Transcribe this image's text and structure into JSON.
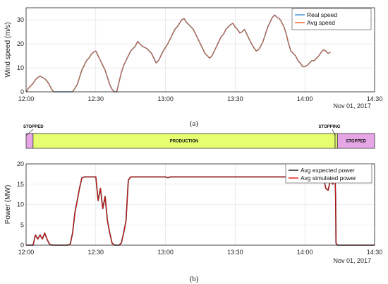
{
  "chart_data": [
    {
      "type": "line",
      "panel_label": "(a)",
      "ylabel": "Wind speed (m/s)",
      "xticks": [
        "12:00",
        "12:30",
        "13:00",
        "13:30",
        "14:00",
        "14:30"
      ],
      "xticks_min": [
        0,
        30,
        60,
        90,
        120,
        150
      ],
      "date_label": "Nov 01, 2017",
      "yticks": [
        "0",
        "10",
        "20",
        "30"
      ],
      "ylim": [
        0,
        35
      ],
      "xlim_min": [
        0,
        150
      ],
      "grid": true,
      "legend_position": "top-right",
      "series": [
        {
          "name": "Real speed",
          "color": "#3a8fd6",
          "x_min": [
            0,
            1,
            2,
            3,
            4,
            5,
            6,
            7,
            8,
            9,
            10,
            11,
            12,
            13,
            14,
            16,
            18,
            20,
            22,
            23,
            24,
            25,
            26,
            27,
            28,
            29,
            30,
            31,
            32,
            33,
            34,
            35,
            36,
            37,
            38,
            39,
            40,
            41,
            42,
            43,
            44,
            45,
            46,
            47,
            48,
            49,
            50,
            51,
            52,
            53,
            54,
            55,
            56,
            57,
            58,
            59,
            60,
            61,
            62,
            63,
            64,
            65,
            66,
            67,
            68,
            69,
            70,
            71,
            72,
            73,
            74,
            75,
            76,
            77,
            78,
            79,
            80,
            81,
            82,
            83,
            84,
            85,
            86,
            87,
            88,
            89,
            90,
            91,
            92,
            93,
            94,
            95,
            96,
            97,
            98,
            99,
            100,
            101,
            102,
            103,
            104,
            105,
            106,
            107,
            108,
            109,
            110,
            111,
            112,
            113,
            114,
            115,
            116,
            117,
            118,
            119,
            120,
            121,
            122,
            123,
            124,
            125,
            126,
            127,
            128,
            129,
            130,
            131,
            132,
            133,
            134,
            135,
            136,
            137,
            138,
            139
          ],
          "y": [
            0,
            1.5,
            2.5,
            3.5,
            5,
            6,
            6.5,
            6,
            5.5,
            4.5,
            3,
            1,
            0,
            0,
            0,
            0,
            0,
            0,
            3,
            6,
            9,
            11,
            13,
            14,
            15.5,
            16.5,
            17,
            15,
            13,
            11,
            9,
            6,
            3,
            1,
            0,
            0,
            4,
            8,
            11,
            13,
            15,
            17,
            18,
            19,
            21,
            20,
            19,
            18.5,
            18,
            17,
            16,
            14,
            12,
            13,
            15,
            17,
            18.5,
            20,
            22,
            24,
            26,
            27,
            28.5,
            30,
            30.5,
            29,
            28,
            27,
            26,
            24,
            22,
            20,
            18,
            16,
            15,
            14,
            15,
            17,
            19,
            21,
            23,
            24,
            26,
            27,
            28,
            28.5,
            27,
            26,
            24.5,
            25,
            26,
            24,
            22,
            20,
            18.5,
            17,
            17.5,
            19,
            21,
            24,
            27,
            29,
            31,
            32,
            31,
            30.5,
            29,
            27,
            24,
            20,
            17,
            16,
            15,
            13,
            12,
            10.5,
            10.5,
            11,
            12,
            13,
            13,
            14,
            15,
            16.5,
            17.5,
            17,
            16,
            16.5
          ]
        },
        {
          "name": "Avg speed",
          "color": "#e05a1e",
          "x_min": [
            0,
            1,
            2,
            3,
            4,
            5,
            6,
            7,
            8,
            9,
            10,
            11,
            12,
            13,
            14,
            16,
            18,
            20,
            22,
            23,
            24,
            25,
            26,
            27,
            28,
            29,
            30,
            31,
            32,
            33,
            34,
            35,
            36,
            37,
            38,
            39,
            40,
            41,
            42,
            43,
            44,
            45,
            46,
            47,
            48,
            49,
            50,
            51,
            52,
            53,
            54,
            55,
            56,
            57,
            58,
            59,
            60,
            61,
            62,
            63,
            64,
            65,
            66,
            67,
            68,
            69,
            70,
            71,
            72,
            73,
            74,
            75,
            76,
            77,
            78,
            79,
            80,
            81,
            82,
            83,
            84,
            85,
            86,
            87,
            88,
            89,
            90,
            91,
            92,
            93,
            94,
            95,
            96,
            97,
            98,
            99,
            100,
            101,
            102,
            103,
            104,
            105,
            106,
            107,
            108,
            109,
            110,
            111,
            112,
            113,
            114,
            115,
            116,
            117,
            118,
            119,
            120,
            121,
            122,
            123,
            124,
            125,
            126,
            127,
            128,
            129,
            130,
            131,
            132,
            133,
            134,
            135,
            136,
            137,
            138,
            139
          ],
          "y": [
            0,
            1.5,
            2.5,
            3.5,
            5,
            6,
            6.5,
            6,
            5.5,
            4.5,
            3,
            1,
            0,
            0,
            0,
            0,
            0,
            0,
            3,
            6,
            9,
            11,
            13,
            14,
            15.5,
            16.5,
            17,
            15,
            13,
            11,
            9,
            6,
            3,
            1,
            0,
            0,
            4,
            8,
            11,
            13,
            15,
            17,
            18,
            19,
            21,
            20,
            19,
            18.5,
            18,
            17,
            16,
            14,
            12,
            13,
            15,
            17,
            18.5,
            20,
            22,
            24,
            26,
            27,
            28.5,
            30,
            30.5,
            29,
            28,
            27,
            26,
            24,
            22,
            20,
            18,
            16,
            15,
            14,
            15,
            17,
            19,
            21,
            23,
            24,
            26,
            27,
            28,
            28.5,
            27,
            26,
            24.5,
            25,
            26,
            24,
            22,
            20,
            18.5,
            17,
            17.5,
            19,
            21,
            24,
            27,
            29,
            31,
            32,
            31,
            30.5,
            29,
            27,
            24,
            20,
            17,
            16,
            15,
            13,
            12,
            10.5,
            10.5,
            11,
            12,
            13,
            13,
            14,
            15,
            16.5,
            17.5,
            17,
            16,
            16.5
          ]
        }
      ]
    },
    {
      "type": "line",
      "panel_label": "(b)",
      "ylabel": "Power (MW)",
      "xticks": [
        "12:00",
        "12:30",
        "13:00",
        "13:30",
        "14:00",
        "14:30"
      ],
      "xticks_min": [
        0,
        30,
        60,
        90,
        120,
        150
      ],
      "date_label": "Nov 01, 2017",
      "yticks": [
        "0",
        "5",
        "10",
        "15",
        "20"
      ],
      "ylim": [
        0,
        20
      ],
      "xlim_min": [
        0,
        150
      ],
      "grid": true,
      "legend_position": "top-right",
      "states": [
        {
          "label": "STOPPED",
          "start_min": 0,
          "end_min": 3,
          "color": "#e6a6e6"
        },
        {
          "label": "PRODUCTION",
          "start_min": 3,
          "end_min": 133,
          "color": "#e6ff70"
        },
        {
          "label": "STOPPING",
          "start_min": 133,
          "end_min": 134,
          "color": "#e6ff70"
        },
        {
          "label": "STOPPED",
          "start_min": 134,
          "end_min": 150,
          "color": "#e6a6e6"
        }
      ],
      "series": [
        {
          "name": "Avg expected power",
          "color": "#111111",
          "x_min": [
            0,
            3,
            4,
            5,
            6,
            7,
            8,
            9,
            10,
            11,
            12,
            13,
            14,
            18,
            19,
            20,
            21,
            22,
            23,
            24,
            25,
            26,
            30,
            31,
            32,
            33,
            34,
            35,
            36,
            37,
            38,
            40,
            41,
            42,
            43,
            44,
            45,
            60,
            61,
            62,
            128,
            129,
            130,
            131,
            132,
            133,
            133.2,
            133.4,
            134,
            150
          ],
          "y": [
            0,
            0,
            2.5,
            1.5,
            2.5,
            1.5,
            3,
            1.5,
            0.3,
            0,
            0,
            0,
            0,
            0,
            0.3,
            3,
            8,
            11,
            14,
            16.5,
            16.8,
            16.8,
            16.8,
            11,
            14,
            9,
            12,
            6,
            3,
            0.5,
            0,
            0,
            0.5,
            3,
            6,
            16,
            16.8,
            16.8,
            16.6,
            16.8,
            16.8,
            14,
            13.5,
            16,
            15,
            17,
            12,
            0.5,
            0,
            0
          ]
        },
        {
          "name": "Avg simulated power",
          "color": "#e01818",
          "x_min": [
            0,
            3,
            4,
            5,
            6,
            7,
            8,
            9,
            10,
            11,
            12,
            13,
            14,
            18,
            19,
            20,
            21,
            22,
            23,
            24,
            25,
            26,
            30,
            31,
            32,
            33,
            34,
            35,
            36,
            37,
            38,
            40,
            41,
            42,
            43,
            44,
            45,
            60,
            61,
            62,
            128,
            129,
            130,
            131,
            132,
            133,
            133.2,
            133.4,
            134,
            150
          ],
          "y": [
            0,
            0,
            2.5,
            1.5,
            2.5,
            1.5,
            3,
            1.5,
            0.3,
            0,
            0,
            0,
            0,
            0,
            0.3,
            3,
            8,
            11,
            14,
            16.5,
            16.8,
            16.8,
            16.8,
            11,
            14,
            9,
            12,
            6,
            3,
            0.5,
            0,
            0,
            0.5,
            3,
            6,
            16,
            16.8,
            16.8,
            16.6,
            16.8,
            16.8,
            14,
            13.5,
            16,
            15,
            17,
            12,
            0.5,
            0,
            0
          ]
        }
      ]
    }
  ]
}
